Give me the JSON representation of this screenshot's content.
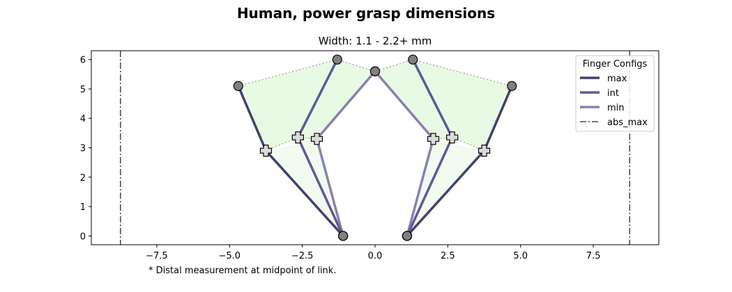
{
  "figure": {
    "title": "Human, power grasp dimensions",
    "footnote": "* Distal measurement at midpoint of link."
  },
  "chart_data": {
    "type": "line",
    "title": "Width: 1.1 - 2.2+ mm",
    "xlabel": "",
    "ylabel": "",
    "xlim": [
      -9.75,
      9.75
    ],
    "ylim": [
      -0.3,
      6.3
    ],
    "x_ticks": [
      -7.5,
      -5.0,
      -2.5,
      0.0,
      2.5,
      5.0,
      7.5
    ],
    "x_tick_labels": [
      "−7.5",
      "−5.0",
      "−2.5",
      "0.0",
      "2.5",
      "5.0",
      "7.5"
    ],
    "y_ticks": [
      0,
      1,
      2,
      3,
      4,
      5,
      6
    ],
    "y_tick_labels": [
      "0",
      "1",
      "2",
      "3",
      "4",
      "5",
      "6"
    ],
    "grid": false,
    "legend": {
      "title": "Finger Configs",
      "position": "top-right",
      "entries": [
        "max",
        "int",
        "min",
        "abs_max"
      ]
    },
    "colors": {
      "max": "#45406b",
      "int": "#5f5999",
      "min": "#8880b3",
      "abs_max": "#444444",
      "fill_outer": "#e8fae3",
      "fill_inner": "#f2fbef",
      "dotted": "#8fbd8a",
      "joint": "#808080",
      "tip": "#d9d9d9"
    },
    "series": [
      {
        "name": "max",
        "points": [
          [
            -1.1,
            0.0
          ],
          [
            -3.75,
            2.9
          ],
          [
            -4.7,
            5.1
          ]
        ],
        "mirror": true
      },
      {
        "name": "int",
        "points": [
          [
            -1.1,
            0.0
          ],
          [
            -2.65,
            3.35
          ],
          [
            -1.3,
            6.0
          ]
        ],
        "mirror": true
      },
      {
        "name": "min",
        "points": [
          [
            -1.1,
            0.0
          ],
          [
            -2.0,
            3.3
          ],
          [
            0.0,
            5.6
          ]
        ],
        "mirror": true
      }
    ],
    "abs_max": [
      -8.75,
      8.75
    ]
  }
}
